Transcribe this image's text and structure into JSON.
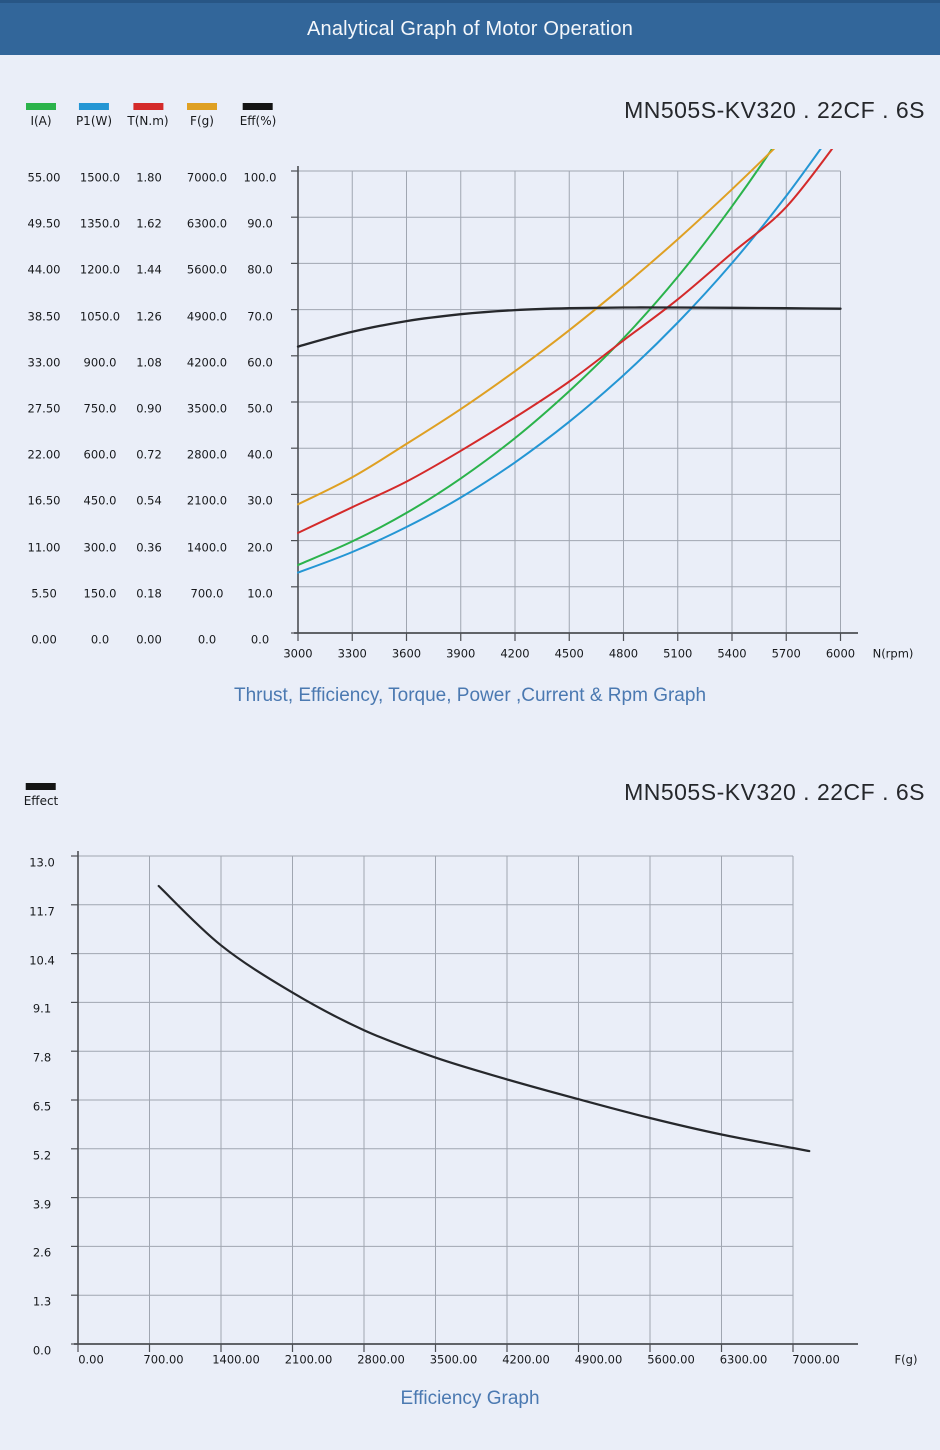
{
  "header": {
    "title": "Analytical Graph of Motor Operation"
  },
  "chart_data": [
    {
      "type": "line",
      "title": "MN505S-KV320 . 22CF . 6S",
      "caption": "Thrust, Efficiency, Torque, Power ,Current & Rpm Graph",
      "grid": true,
      "x_axis": {
        "label": "N(rpm)",
        "range": [
          3000,
          6000
        ],
        "ticks": [
          "3000",
          "3300",
          "3600",
          "3900",
          "4200",
          "4500",
          "4800",
          "5100",
          "5400",
          "5700",
          "6000"
        ]
      },
      "y_axes": [
        {
          "name": "I(A)",
          "color": "#2bb34b",
          "max": 55,
          "ticks": [
            "55.00",
            "49.50",
            "44.00",
            "38.50",
            "33.00",
            "27.50",
            "22.00",
            "16.50",
            "11.00",
            "5.50",
            "0.00"
          ]
        },
        {
          "name": "P1(W)",
          "color": "#2496d4",
          "max": 1500,
          "ticks": [
            "1500.0",
            "1350.0",
            "1200.0",
            "1050.0",
            "900.0",
            "750.0",
            "600.0",
            "450.0",
            "300.0",
            "150.0",
            "0.0"
          ]
        },
        {
          "name": "T(N.m)",
          "color": "#d42a2a",
          "max": 1.8,
          "ticks": [
            "1.80",
            "1.62",
            "1.44",
            "1.26",
            "1.08",
            "0.90",
            "0.72",
            "0.54",
            "0.36",
            "0.18",
            "0.00"
          ]
        },
        {
          "name": "F(g)",
          "color": "#dfa023",
          "max": 7000,
          "ticks": [
            "7000.0",
            "6300.0",
            "5600.0",
            "4900.0",
            "4200.0",
            "3500.0",
            "2800.0",
            "2100.0",
            "1400.0",
            "700.0",
            "0.0"
          ]
        },
        {
          "name": "Eff(%)",
          "color": "#141414",
          "max": 100,
          "ticks": [
            "100.0",
            "90.0",
            "80.0",
            "70.0",
            "60.0",
            "50.0",
            "40.0",
            "30.0",
            "20.0",
            "10.0",
            "0.0"
          ]
        }
      ],
      "legend": [
        {
          "label": "I(A)",
          "color": "#2bb34b"
        },
        {
          "label": "P1(W)",
          "color": "#2496d4"
        },
        {
          "label": "T(N.m)",
          "color": "#d42a2a"
        },
        {
          "label": "F(g)",
          "color": "#dfa023"
        },
        {
          "label": "Eff(%)",
          "color": "#141414"
        }
      ],
      "series": [
        {
          "name": "I(A)",
          "axis": 0,
          "color": "#2bb34b",
          "x": [
            3000,
            3300,
            3600,
            3900,
            4200,
            4500,
            4800,
            5100,
            5400,
            5700,
            6000
          ],
          "y": [
            8.1,
            10.9,
            14.3,
            18.4,
            23.2,
            28.8,
            35.1,
            42.4,
            50.8,
            60.2,
            70.7
          ]
        },
        {
          "name": "P1(W)",
          "axis": 1,
          "color": "#2496d4",
          "x": [
            3000,
            3300,
            3600,
            3900,
            4200,
            4500,
            4800,
            5100,
            5400,
            5700,
            6000
          ],
          "y": [
            196,
            263,
            344,
            440,
            554,
            686,
            837,
            1008,
            1201,
            1419,
            1662
          ]
        },
        {
          "name": "T(N.m)",
          "axis": 2,
          "color": "#d42a2a",
          "x": [
            3000,
            3300,
            3600,
            3900,
            4200,
            4500,
            4800,
            5100,
            5400,
            5700,
            6000
          ],
          "y": [
            0.39,
            0.49,
            0.59,
            0.71,
            0.84,
            0.98,
            1.14,
            1.3,
            1.48,
            1.66,
            1.93
          ]
        },
        {
          "name": "F(g)",
          "axis": 3,
          "color": "#dfa023",
          "x": [
            3000,
            3300,
            3600,
            3900,
            4200,
            4500,
            4800,
            5100,
            5400,
            5700,
            6000
          ],
          "y": [
            1950,
            2360,
            2865,
            3392,
            3967,
            4588,
            5255,
            5966,
            6723,
            7525,
            8400
          ]
        },
        {
          "name": "Eff(%)",
          "axis": 4,
          "color": "#26282c",
          "x": [
            3000,
            3300,
            3600,
            3900,
            4200,
            4500,
            4800,
            5100,
            5400,
            5700,
            6000
          ],
          "y": [
            62.0,
            65.2,
            67.5,
            69.0,
            69.9,
            70.3,
            70.45,
            70.45,
            70.4,
            70.3,
            70.2
          ]
        }
      ]
    },
    {
      "type": "line",
      "title": "MN505S-KV320 . 22CF . 6S",
      "caption": "Efficiency Graph",
      "grid": true,
      "legend": [
        {
          "label": "Effect",
          "color": "#141414"
        }
      ],
      "x_axis": {
        "label": "F(g)",
        "range": [
          0,
          7000
        ],
        "ticks": [
          "0.00",
          "700.00",
          "1400.00",
          "2100.00",
          "2800.00",
          "3500.00",
          "4200.00",
          "4900.00",
          "5600.00",
          "6300.00",
          "7000.00"
        ]
      },
      "y_axis": {
        "range": [
          0,
          13
        ],
        "ticks": [
          "13.0",
          "11.7",
          "10.4",
          "9.1",
          "7.8",
          "6.5",
          "5.2",
          "3.9",
          "2.6",
          "1.3",
          "0.0"
        ]
      },
      "series": [
        {
          "name": "Effect",
          "color": "#26282c",
          "x": [
            790,
            1400,
            2100,
            2800,
            3500,
            4200,
            4900,
            5600,
            6300,
            7000,
            7160
          ],
          "y": [
            12.2,
            10.62,
            9.36,
            8.36,
            7.63,
            7.05,
            6.52,
            6.02,
            5.58,
            5.22,
            5.14
          ]
        }
      ]
    }
  ]
}
